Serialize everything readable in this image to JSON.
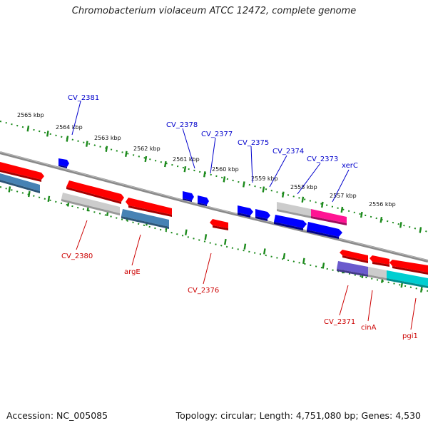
{
  "title": "Chromobacterium violaceum ATCC 12472, complete genome",
  "accession": "Accession: NC_005085",
  "topology": "Topology: circular; Length: 4,751,080 bp; Genes: 4,530",
  "colors": {
    "backbone": "#777777",
    "ruler_dots": "#1c8a1c",
    "forward_label": "#0000cc",
    "reverse_label": "#cc0000",
    "red_feature": "#ff0000",
    "blue_feature": "#0000ff",
    "grey_feature": "#c8c8c8",
    "steel_feature": "#4682b4",
    "magenta_feature": "#ff1493",
    "purple_feature": "#6a5acd",
    "cyan_feature": "#00ced1"
  },
  "ruler": {
    "unit": "kbp",
    "ticks": [
      "2565 kbp",
      "2564 kbp",
      "2563 kbp",
      "2562 kbp",
      "2561 kbp",
      "2560 kbp",
      "2559 kbp",
      "2558 kbp",
      "2557 kbp",
      "2556 kbp"
    ]
  },
  "forward_labels": [
    "CV_2381",
    "CV_2378",
    "CV_2377",
    "CV_2375",
    "CV_2374",
    "CV_2373",
    "xerC"
  ],
  "reverse_labels": [
    "CV_2380",
    "argE",
    "CV_2376",
    "CV_2371",
    "cinA",
    "pgi1"
  ],
  "features": [
    {
      "lane": "outer",
      "color": "red_feature"
    },
    {
      "lane": "inner",
      "color": "steel_feature"
    },
    {
      "lane": "inner",
      "color": "red_feature"
    },
    {
      "lane": "inner",
      "color": "grey_feature"
    },
    {
      "lane": "inner",
      "color": "red_feature"
    },
    {
      "lane": "inner",
      "color": "steel_feature"
    },
    {
      "lane": "outer",
      "color": "blue_feature"
    },
    {
      "lane": "outer",
      "color": "blue_feature"
    },
    {
      "lane": "outer",
      "color": "blue_feature"
    },
    {
      "lane": "inner",
      "color": "red_feature"
    },
    {
      "lane": "outer",
      "color": "blue_feature"
    },
    {
      "lane": "outer",
      "color": "blue_feature"
    },
    {
      "lane": "outer",
      "color": "grey_feature"
    },
    {
      "lane": "outer",
      "color": "magenta_feature"
    },
    {
      "lane": "outer",
      "color": "blue_feature"
    },
    {
      "lane": "outer",
      "color": "blue_feature"
    },
    {
      "lane": "inner",
      "color": "red_feature"
    },
    {
      "lane": "inner",
      "color": "red_feature"
    },
    {
      "lane": "inner",
      "color": "red_feature"
    },
    {
      "lane": "inner",
      "color": "purple_feature"
    },
    {
      "lane": "inner",
      "color": "grey_feature"
    },
    {
      "lane": "inner",
      "color": "cyan_feature"
    }
  ]
}
